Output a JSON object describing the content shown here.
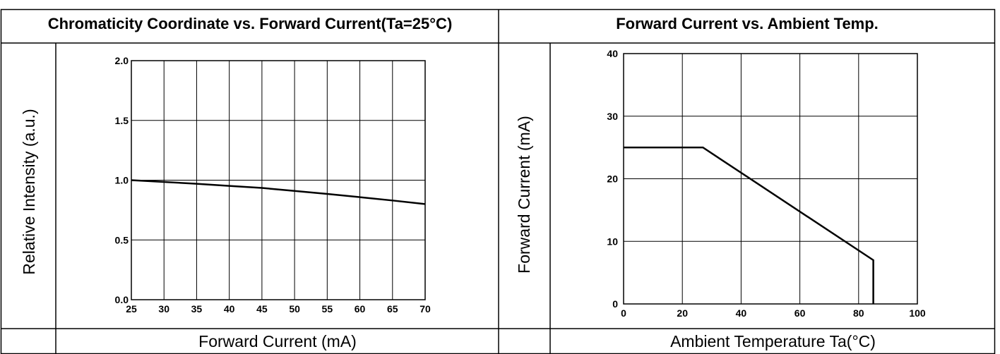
{
  "charts": [
    {
      "header": "Chromaticity Coordinate vs. Forward Current(Ta=25°C)",
      "xlabel": "Forward Current (mA)",
      "ylabel": "Relative Intensity (a.u.)"
    },
    {
      "header": "Forward Current vs. Ambient Temp.",
      "xlabel": "Ambient Temperature Ta(°C)",
      "ylabel": "Forward Current (mA)"
    }
  ],
  "chart_data": [
    {
      "type": "line",
      "title": "Chromaticity Coordinate vs. Forward Current(Ta=25°C)",
      "xlabel": "Forward Current (mA)",
      "ylabel": "Relative Intensity (a.u.)",
      "xlim": [
        25,
        70
      ],
      "ylim": [
        0,
        2
      ],
      "xticks": [
        25,
        30,
        35,
        40,
        45,
        50,
        55,
        60,
        65,
        70
      ],
      "yticks": [
        0,
        0.5,
        1,
        1.5,
        2
      ],
      "xtick_labels": [
        "25",
        "30",
        "35",
        "40",
        "45",
        "50",
        "55",
        "60",
        "65",
        "70"
      ],
      "ytick_labels": [
        "0.0",
        "0.5",
        "1.0",
        "1.5",
        "2.0"
      ],
      "grid": true,
      "series": [
        {
          "x": [
            25,
            30,
            35,
            40,
            45,
            50,
            55,
            60,
            65,
            70
          ],
          "y": [
            1.0,
            0.985,
            0.97,
            0.952,
            0.935,
            0.91,
            0.885,
            0.858,
            0.83,
            0.8
          ]
        }
      ]
    },
    {
      "type": "line",
      "title": "Forward Current vs. Ambient Temp.",
      "xlabel": "Ambient Temperature Ta(°C)",
      "ylabel": "Forward Current (mA)",
      "xlim": [
        0,
        100
      ],
      "ylim": [
        0,
        40
      ],
      "xticks": [
        0,
        20,
        40,
        60,
        80,
        100
      ],
      "yticks": [
        0,
        10,
        20,
        30,
        40
      ],
      "xtick_labels": [
        "0",
        "20",
        "40",
        "60",
        "80",
        "100"
      ],
      "ytick_labels": [
        "0",
        "10",
        "20",
        "30",
        "40"
      ],
      "grid": true,
      "series": [
        {
          "x": [
            0,
            27,
            85,
            85
          ],
          "y": [
            25,
            25,
            7,
            0
          ]
        }
      ]
    }
  ]
}
